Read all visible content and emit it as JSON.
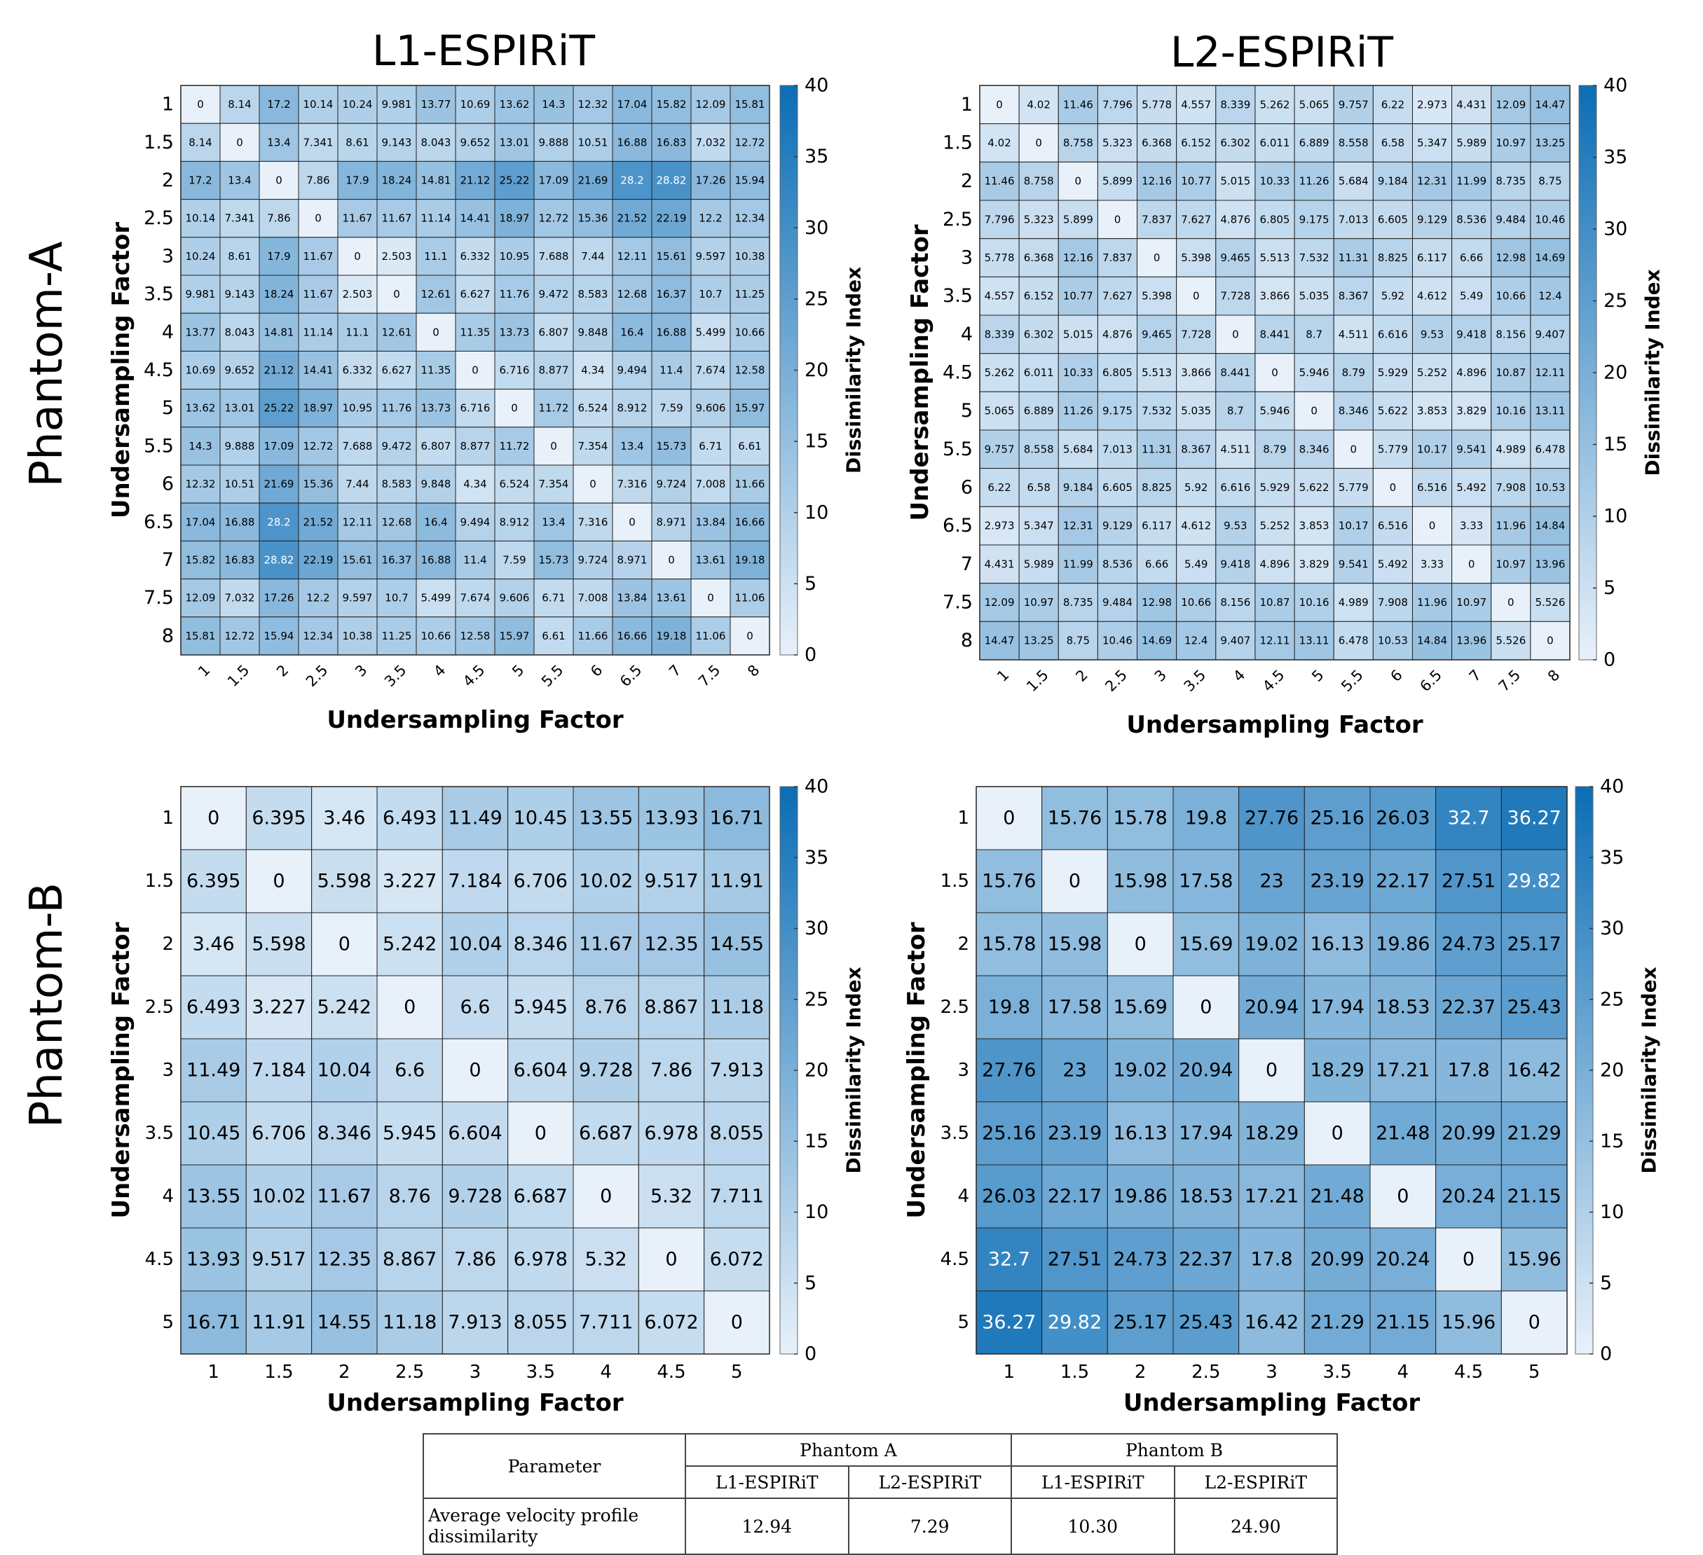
{
  "row_labels": {
    "phantom_a": "Phantom-A",
    "phantom_b": "Phantom-B"
  },
  "column_titles": {
    "left": "L1-ESPIRiT",
    "right": "L2-ESPIRiT"
  },
  "colors": {
    "colormap_low": "#e8f1fa",
    "colormap_high": "#0b6db5",
    "grid_line": "#222222"
  },
  "chart_data": [
    {
      "type": "heatmap",
      "id": "phantom-a-l1",
      "title": "L1-ESPIRiT",
      "xlabel": "Undersampling Factor",
      "ylabel": "Undersampling Factor",
      "colorbar_label": "Dissimilarity Index",
      "clim": [
        0,
        40
      ],
      "colorbar_ticks": [
        0,
        5,
        10,
        15,
        20,
        25,
        30,
        35,
        40
      ],
      "categories": [
        "1",
        "1.5",
        "2",
        "2.5",
        "3",
        "3.5",
        "4",
        "4.5",
        "5",
        "5.5",
        "6",
        "6.5",
        "7",
        "7.5",
        "8"
      ],
      "x_tick_rotation": true,
      "values": [
        [
          "0",
          "8.14",
          "17.2",
          "10.14",
          "10.24",
          "9.981",
          "13.77",
          "10.69",
          "13.62",
          "14.3",
          "12.32",
          "17.04",
          "15.82",
          "12.09",
          "15.81"
        ],
        [
          "8.14",
          "0",
          "13.4",
          "7.341",
          "8.61",
          "9.143",
          "8.043",
          "9.652",
          "13.01",
          "9.888",
          "10.51",
          "16.88",
          "16.83",
          "7.032",
          "12.72"
        ],
        [
          "17.2",
          "13.4",
          "0",
          "7.86",
          "17.9",
          "18.24",
          "14.81",
          "21.12",
          "25.22",
          "17.09",
          "21.69",
          "28.2",
          "28.82",
          "17.26",
          "15.94"
        ],
        [
          "10.14",
          "7.341",
          "7.86",
          "0",
          "11.67",
          "11.67",
          "11.14",
          "14.41",
          "18.97",
          "12.72",
          "15.36",
          "21.52",
          "22.19",
          "12.2",
          "12.34"
        ],
        [
          "10.24",
          "8.61",
          "17.9",
          "11.67",
          "0",
          "2.503",
          "11.1",
          "6.332",
          "10.95",
          "7.688",
          "7.44",
          "12.11",
          "15.61",
          "9.597",
          "10.38"
        ],
        [
          "9.981",
          "9.143",
          "18.24",
          "11.67",
          "2.503",
          "0",
          "12.61",
          "6.627",
          "11.76",
          "9.472",
          "8.583",
          "12.68",
          "16.37",
          "10.7",
          "11.25"
        ],
        [
          "13.77",
          "8.043",
          "14.81",
          "11.14",
          "11.1",
          "12.61",
          "0",
          "11.35",
          "13.73",
          "6.807",
          "9.848",
          "16.4",
          "16.88",
          "5.499",
          "10.66"
        ],
        [
          "10.69",
          "9.652",
          "21.12",
          "14.41",
          "6.332",
          "6.627",
          "11.35",
          "0",
          "6.716",
          "8.877",
          "4.34",
          "9.494",
          "11.4",
          "7.674",
          "12.58"
        ],
        [
          "13.62",
          "13.01",
          "25.22",
          "18.97",
          "10.95",
          "11.76",
          "13.73",
          "6.716",
          "0",
          "11.72",
          "6.524",
          "8.912",
          "7.59",
          "9.606",
          "15.97"
        ],
        [
          "14.3",
          "9.888",
          "17.09",
          "12.72",
          "7.688",
          "9.472",
          "6.807",
          "8.877",
          "11.72",
          "0",
          "7.354",
          "13.4",
          "15.73",
          "6.71",
          "6.61"
        ],
        [
          "12.32",
          "10.51",
          "21.69",
          "15.36",
          "7.44",
          "8.583",
          "9.848",
          "4.34",
          "6.524",
          "7.354",
          "0",
          "7.316",
          "9.724",
          "7.008",
          "11.66"
        ],
        [
          "17.04",
          "16.88",
          "28.2",
          "21.52",
          "12.11",
          "12.68",
          "16.4",
          "9.494",
          "8.912",
          "13.4",
          "7.316",
          "0",
          "8.971",
          "13.84",
          "16.66"
        ],
        [
          "15.82",
          "16.83",
          "28.82",
          "22.19",
          "15.61",
          "16.37",
          "16.88",
          "11.4",
          "7.59",
          "15.73",
          "9.724",
          "8.971",
          "0",
          "13.61",
          "19.18"
        ],
        [
          "12.09",
          "7.032",
          "17.26",
          "12.2",
          "9.597",
          "10.7",
          "5.499",
          "7.674",
          "9.606",
          "6.71",
          "7.008",
          "13.84",
          "13.61",
          "0",
          "11.06"
        ],
        [
          "15.81",
          "12.72",
          "15.94",
          "12.34",
          "10.38",
          "11.25",
          "10.66",
          "12.58",
          "15.97",
          "6.61",
          "11.66",
          "16.66",
          "19.18",
          "11.06",
          "0"
        ]
      ]
    },
    {
      "type": "heatmap",
      "id": "phantom-a-l2",
      "title": "L2-ESPIRiT",
      "xlabel": "Undersampling Factor",
      "ylabel": "Undersampling Factor",
      "colorbar_label": "Dissimilarity Index",
      "clim": [
        0,
        40
      ],
      "colorbar_ticks": [
        0,
        5,
        10,
        15,
        20,
        25,
        30,
        35,
        40
      ],
      "categories": [
        "1",
        "1.5",
        "2",
        "2.5",
        "3",
        "3.5",
        "4",
        "4.5",
        "5",
        "5.5",
        "6",
        "6.5",
        "7",
        "7.5",
        "8"
      ],
      "x_tick_rotation": true,
      "values": [
        [
          "0",
          "4.02",
          "11.46",
          "7.796",
          "5.778",
          "4.557",
          "8.339",
          "5.262",
          "5.065",
          "9.757",
          "6.22",
          "2.973",
          "4.431",
          "12.09",
          "14.47"
        ],
        [
          "4.02",
          "0",
          "8.758",
          "5.323",
          "6.368",
          "6.152",
          "6.302",
          "6.011",
          "6.889",
          "8.558",
          "6.58",
          "5.347",
          "5.989",
          "10.97",
          "13.25"
        ],
        [
          "11.46",
          "8.758",
          "0",
          "5.899",
          "12.16",
          "10.77",
          "5.015",
          "10.33",
          "11.26",
          "5.684",
          "9.184",
          "12.31",
          "11.99",
          "8.735",
          "8.75"
        ],
        [
          "7.796",
          "5.323",
          "5.899",
          "0",
          "7.837",
          "7.627",
          "4.876",
          "6.805",
          "9.175",
          "7.013",
          "6.605",
          "9.129",
          "8.536",
          "9.484",
          "10.46"
        ],
        [
          "5.778",
          "6.368",
          "12.16",
          "7.837",
          "0",
          "5.398",
          "9.465",
          "5.513",
          "7.532",
          "11.31",
          "8.825",
          "6.117",
          "6.66",
          "12.98",
          "14.69"
        ],
        [
          "4.557",
          "6.152",
          "10.77",
          "7.627",
          "5.398",
          "0",
          "7.728",
          "3.866",
          "5.035",
          "8.367",
          "5.92",
          "4.612",
          "5.49",
          "10.66",
          "12.4"
        ],
        [
          "8.339",
          "6.302",
          "5.015",
          "4.876",
          "9.465",
          "7.728",
          "0",
          "8.441",
          "8.7",
          "4.511",
          "6.616",
          "9.53",
          "9.418",
          "8.156",
          "9.407"
        ],
        [
          "5.262",
          "6.011",
          "10.33",
          "6.805",
          "5.513",
          "3.866",
          "8.441",
          "0",
          "5.946",
          "8.79",
          "5.929",
          "5.252",
          "4.896",
          "10.87",
          "12.11"
        ],
        [
          "5.065",
          "6.889",
          "11.26",
          "9.175",
          "7.532",
          "5.035",
          "8.7",
          "5.946",
          "0",
          "8.346",
          "5.622",
          "3.853",
          "3.829",
          "10.16",
          "13.11"
        ],
        [
          "9.757",
          "8.558",
          "5.684",
          "7.013",
          "11.31",
          "8.367",
          "4.511",
          "8.79",
          "8.346",
          "0",
          "5.779",
          "10.17",
          "9.541",
          "4.989",
          "6.478"
        ],
        [
          "6.22",
          "6.58",
          "9.184",
          "6.605",
          "8.825",
          "5.92",
          "6.616",
          "5.929",
          "5.622",
          "5.779",
          "0",
          "6.516",
          "5.492",
          "7.908",
          "10.53"
        ],
        [
          "2.973",
          "5.347",
          "12.31",
          "9.129",
          "6.117",
          "4.612",
          "9.53",
          "5.252",
          "3.853",
          "10.17",
          "6.516",
          "0",
          "3.33",
          "11.96",
          "14.84"
        ],
        [
          "4.431",
          "5.989",
          "11.99",
          "8.536",
          "6.66",
          "5.49",
          "9.418",
          "4.896",
          "3.829",
          "9.541",
          "5.492",
          "3.33",
          "0",
          "10.97",
          "13.96"
        ],
        [
          "12.09",
          "10.97",
          "8.735",
          "9.484",
          "12.98",
          "10.66",
          "8.156",
          "10.87",
          "10.16",
          "4.989",
          "7.908",
          "11.96",
          "10.97",
          "0",
          "5.526"
        ],
        [
          "14.47",
          "13.25",
          "8.75",
          "10.46",
          "14.69",
          "12.4",
          "9.407",
          "12.11",
          "13.11",
          "6.478",
          "10.53",
          "14.84",
          "13.96",
          "5.526",
          "0"
        ]
      ]
    },
    {
      "type": "heatmap",
      "id": "phantom-b-l1",
      "title": "",
      "xlabel": "Undersampling Factor",
      "ylabel": "Undersampling Factor",
      "colorbar_label": "Dissimilarity Index",
      "clim": [
        0,
        40
      ],
      "colorbar_ticks": [
        0,
        5,
        10,
        15,
        20,
        25,
        30,
        35,
        40
      ],
      "categories": [
        "1",
        "1.5",
        "2",
        "2.5",
        "3",
        "3.5",
        "4",
        "4.5",
        "5"
      ],
      "x_tick_rotation": false,
      "values": [
        [
          "0",
          "6.395",
          "3.46",
          "6.493",
          "11.49",
          "10.45",
          "13.55",
          "13.93",
          "16.71"
        ],
        [
          "6.395",
          "0",
          "5.598",
          "3.227",
          "7.184",
          "6.706",
          "10.02",
          "9.517",
          "11.91"
        ],
        [
          "3.46",
          "5.598",
          "0",
          "5.242",
          "10.04",
          "8.346",
          "11.67",
          "12.35",
          "14.55"
        ],
        [
          "6.493",
          "3.227",
          "5.242",
          "0",
          "6.6",
          "5.945",
          "8.76",
          "8.867",
          "11.18"
        ],
        [
          "11.49",
          "7.184",
          "10.04",
          "6.6",
          "0",
          "6.604",
          "9.728",
          "7.86",
          "7.913"
        ],
        [
          "10.45",
          "6.706",
          "8.346",
          "5.945",
          "6.604",
          "0",
          "6.687",
          "6.978",
          "8.055"
        ],
        [
          "13.55",
          "10.02",
          "11.67",
          "8.76",
          "9.728",
          "6.687",
          "0",
          "5.32",
          "7.711"
        ],
        [
          "13.93",
          "9.517",
          "12.35",
          "8.867",
          "7.86",
          "6.978",
          "5.32",
          "0",
          "6.072"
        ],
        [
          "16.71",
          "11.91",
          "14.55",
          "11.18",
          "7.913",
          "8.055",
          "7.711",
          "6.072",
          "0"
        ]
      ]
    },
    {
      "type": "heatmap",
      "id": "phantom-b-l2",
      "title": "",
      "xlabel": "Undersampling Factor",
      "ylabel": "Undersampling Factor",
      "colorbar_label": "Dissimilarity Index",
      "clim": [
        0,
        40
      ],
      "colorbar_ticks": [
        0,
        5,
        10,
        15,
        20,
        25,
        30,
        35,
        40
      ],
      "categories": [
        "1",
        "1.5",
        "2",
        "2.5",
        "3",
        "3.5",
        "4",
        "4.5",
        "5"
      ],
      "x_tick_rotation": false,
      "values": [
        [
          "0",
          "15.76",
          "15.78",
          "19.8",
          "27.76",
          "25.16",
          "26.03",
          "32.7",
          "36.27"
        ],
        [
          "15.76",
          "0",
          "15.98",
          "17.58",
          "23",
          "23.19",
          "22.17",
          "27.51",
          "29.82"
        ],
        [
          "15.78",
          "15.98",
          "0",
          "15.69",
          "19.02",
          "16.13",
          "19.86",
          "24.73",
          "25.17"
        ],
        [
          "19.8",
          "17.58",
          "15.69",
          "0",
          "20.94",
          "17.94",
          "18.53",
          "22.37",
          "25.43"
        ],
        [
          "27.76",
          "23",
          "19.02",
          "20.94",
          "0",
          "18.29",
          "17.21",
          "17.8",
          "16.42"
        ],
        [
          "25.16",
          "23.19",
          "16.13",
          "17.94",
          "18.29",
          "0",
          "21.48",
          "20.99",
          "21.29"
        ],
        [
          "26.03",
          "22.17",
          "19.86",
          "18.53",
          "17.21",
          "21.48",
          "0",
          "20.24",
          "21.15"
        ],
        [
          "32.7",
          "27.51",
          "24.73",
          "22.37",
          "17.8",
          "20.99",
          "20.24",
          "0",
          "15.96"
        ],
        [
          "36.27",
          "29.82",
          "25.17",
          "25.43",
          "16.42",
          "21.29",
          "21.15",
          "15.96",
          "0"
        ]
      ]
    }
  ],
  "summary_table": {
    "parameter_header": "Parameter",
    "phantom_a_header": "Phantom A",
    "phantom_b_header": "Phantom B",
    "sub_headers": [
      "L1-ESPIRiT",
      "L2-ESPIRiT",
      "L1-ESPIRiT",
      "L2-ESPIRiT"
    ],
    "row_label": "Average velocity profile dissimilarity",
    "row_values": [
      "12.94",
      "7.29",
      "10.30",
      "24.90"
    ]
  }
}
